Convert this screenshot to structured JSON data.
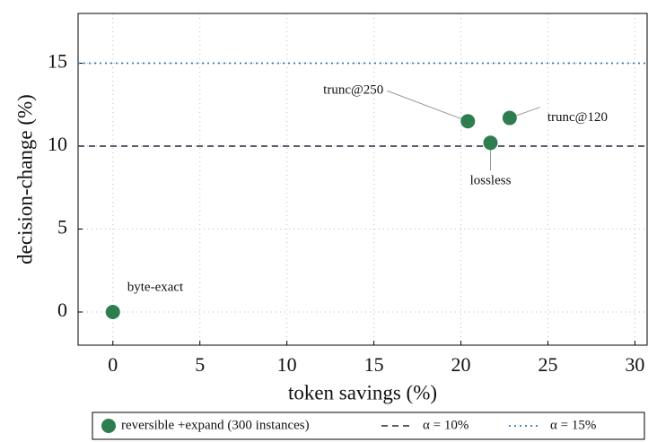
{
  "chart_data": {
    "type": "scatter",
    "xlabel": "token savings (%)",
    "ylabel": "decision-change (%)",
    "xlim": [
      -2,
      30.7
    ],
    "ylim": [
      -2,
      18
    ],
    "xticks": [
      0,
      5,
      10,
      15,
      20,
      25,
      30
    ],
    "yticks": [
      0,
      5,
      10,
      15
    ],
    "grid": true,
    "legend": "bottom",
    "series": [
      {
        "name": "reversible +expand (300 instances)",
        "color": "#2e7d4f",
        "x": [
          0,
          20.4,
          21.7,
          22.8
        ],
        "values": [
          0,
          11.5,
          10.2,
          11.7
        ],
        "labels": [
          "byte-exact",
          "trunc@250",
          "lossless",
          "trunc@120"
        ]
      }
    ],
    "hlines": [
      {
        "name": "α = 10%",
        "value": 10,
        "style": "dashed",
        "color": "#444455"
      },
      {
        "name": "α = 15%",
        "value": 15,
        "style": "dotted",
        "color": "#2b7bba"
      }
    ]
  }
}
